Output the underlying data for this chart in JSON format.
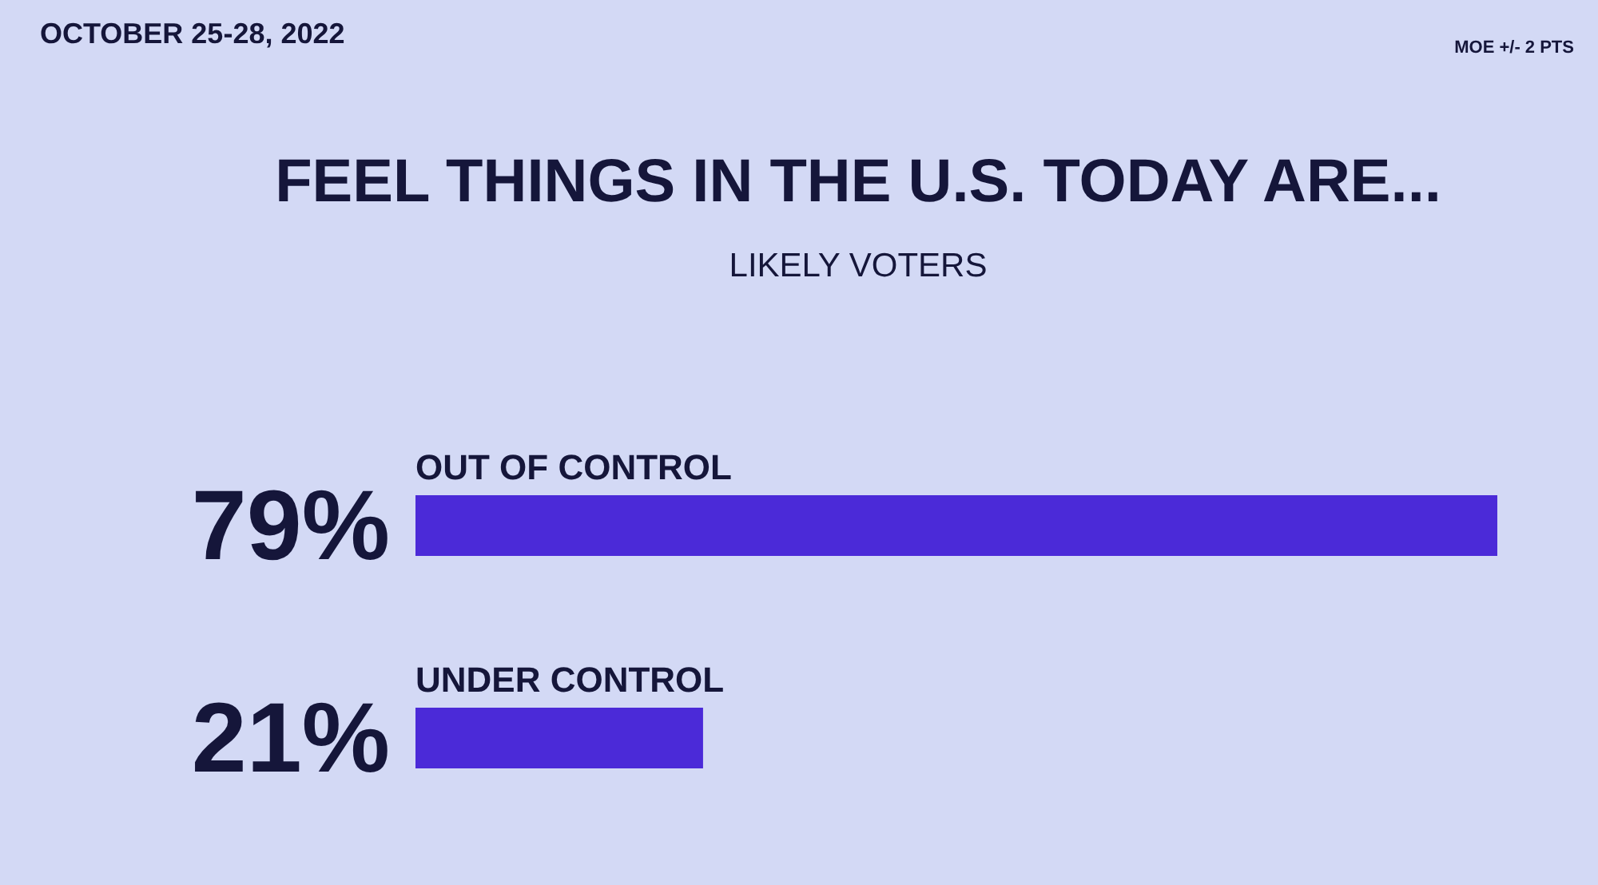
{
  "chart_data": {
    "type": "bar",
    "orientation": "horizontal",
    "title": "FEEL THINGS IN THE U.S. TODAY ARE...",
    "subtitle": "LIKELY VOTERS",
    "categories": [
      "OUT OF CONTROL",
      "UNDER CONTROL"
    ],
    "values": [
      79,
      21
    ],
    "value_labels": [
      "79%",
      "21%"
    ],
    "color": "#4b2ad8",
    "annotations": [
      "OCTOBER 25-28, 2022",
      "MOE +/- 2 PTS"
    ],
    "tick_labels": "y"
  }
}
